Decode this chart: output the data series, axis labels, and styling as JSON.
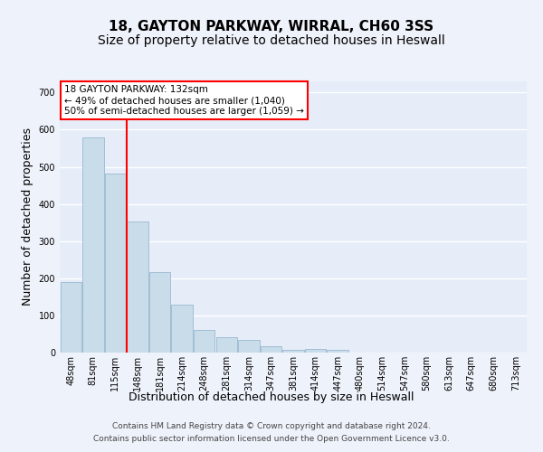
{
  "title": "18, GAYTON PARKWAY, WIRRAL, CH60 3SS",
  "subtitle": "Size of property relative to detached houses in Heswall",
  "xlabel": "Distribution of detached houses by size in Heswall",
  "ylabel": "Number of detached properties",
  "footer_line1": "Contains HM Land Registry data © Crown copyright and database right 2024.",
  "footer_line2": "Contains public sector information licensed under the Open Government Licence v3.0.",
  "bar_labels": [
    "48sqm",
    "81sqm",
    "115sqm",
    "148sqm",
    "181sqm",
    "214sqm",
    "248sqm",
    "281sqm",
    "314sqm",
    "347sqm",
    "381sqm",
    "414sqm",
    "447sqm",
    "480sqm",
    "514sqm",
    "547sqm",
    "580sqm",
    "613sqm",
    "647sqm",
    "680sqm",
    "713sqm"
  ],
  "bar_values": [
    190,
    580,
    483,
    353,
    217,
    130,
    60,
    42,
    34,
    17,
    8,
    10,
    7,
    0,
    0,
    0,
    0,
    0,
    0,
    0,
    0
  ],
  "bar_color": "#c8dcea",
  "bar_edgecolor": "#9ab8d0",
  "vline_x": 2.52,
  "vline_color": "red",
  "property_line_label": "18 GAYTON PARKWAY: 132sqm",
  "annotation_line1": "← 49% of detached houses are smaller (1,040)",
  "annotation_line2": "50% of semi-detached houses are larger (1,059) →",
  "annotation_box_facecolor": "white",
  "annotation_box_edgecolor": "red",
  "ylim": [
    0,
    730
  ],
  "yticks": [
    0,
    100,
    200,
    300,
    400,
    500,
    600,
    700
  ],
  "bg_color": "#eef2fa",
  "plot_bg_color": "#e6edf8",
  "grid_color": "white",
  "title_fontsize": 11,
  "subtitle_fontsize": 10,
  "ylabel_fontsize": 9,
  "xlabel_fontsize": 9,
  "tick_fontsize": 7,
  "footer_fontsize": 6.5,
  "annot_fontsize": 7.5
}
